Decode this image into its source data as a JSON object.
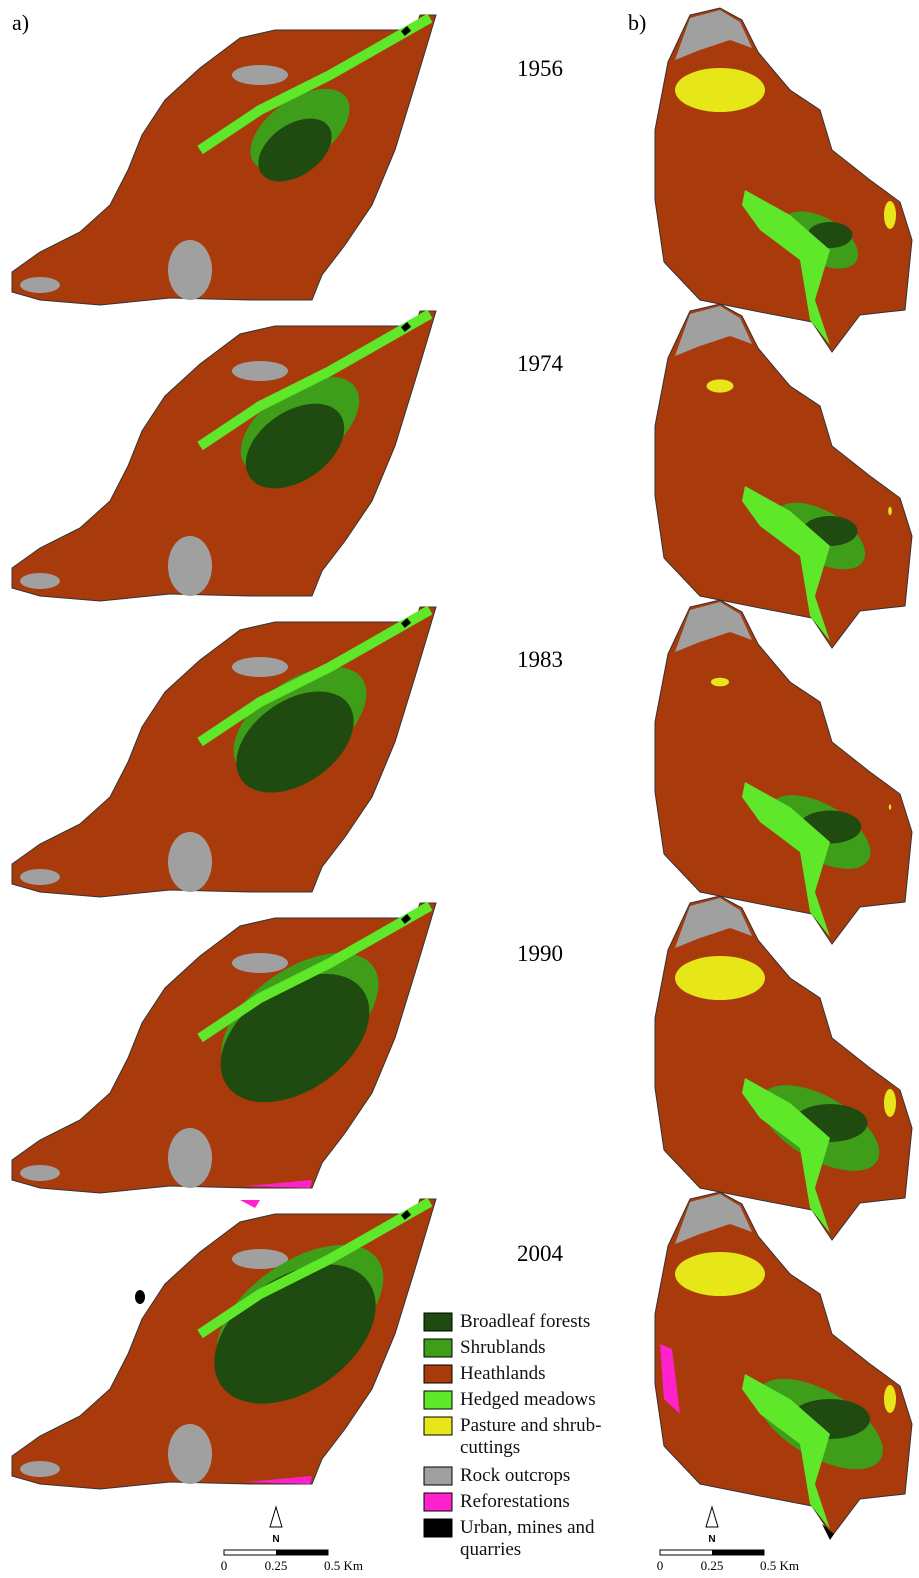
{
  "panels": [
    {
      "label": "a)"
    },
    {
      "label": "b)"
    }
  ],
  "years": [
    "1956",
    "1974",
    "1983",
    "1990",
    "2004"
  ],
  "legend": [
    {
      "label": "Broadleaf forests",
      "color": "#1f4a10"
    },
    {
      "label": "Shrublands",
      "color": "#3e9e1a"
    },
    {
      "label": "Heathlands",
      "color": "#a83a0c"
    },
    {
      "label": "Hedged meadows",
      "color": "#5ee829"
    },
    {
      "label": "Pasture and shrub-cuttings",
      "color": "#e6e619"
    },
    {
      "label": "Rock outcrops",
      "color": "#a0a0a0"
    },
    {
      "label": "Reforestations",
      "color": "#ff22cc"
    },
    {
      "label": "Urban, mines and quarries",
      "color": "#000000"
    }
  ],
  "scale_bar": {
    "ticks": [
      "0",
      "0.25",
      "0.5 Km"
    ],
    "north": "N"
  }
}
